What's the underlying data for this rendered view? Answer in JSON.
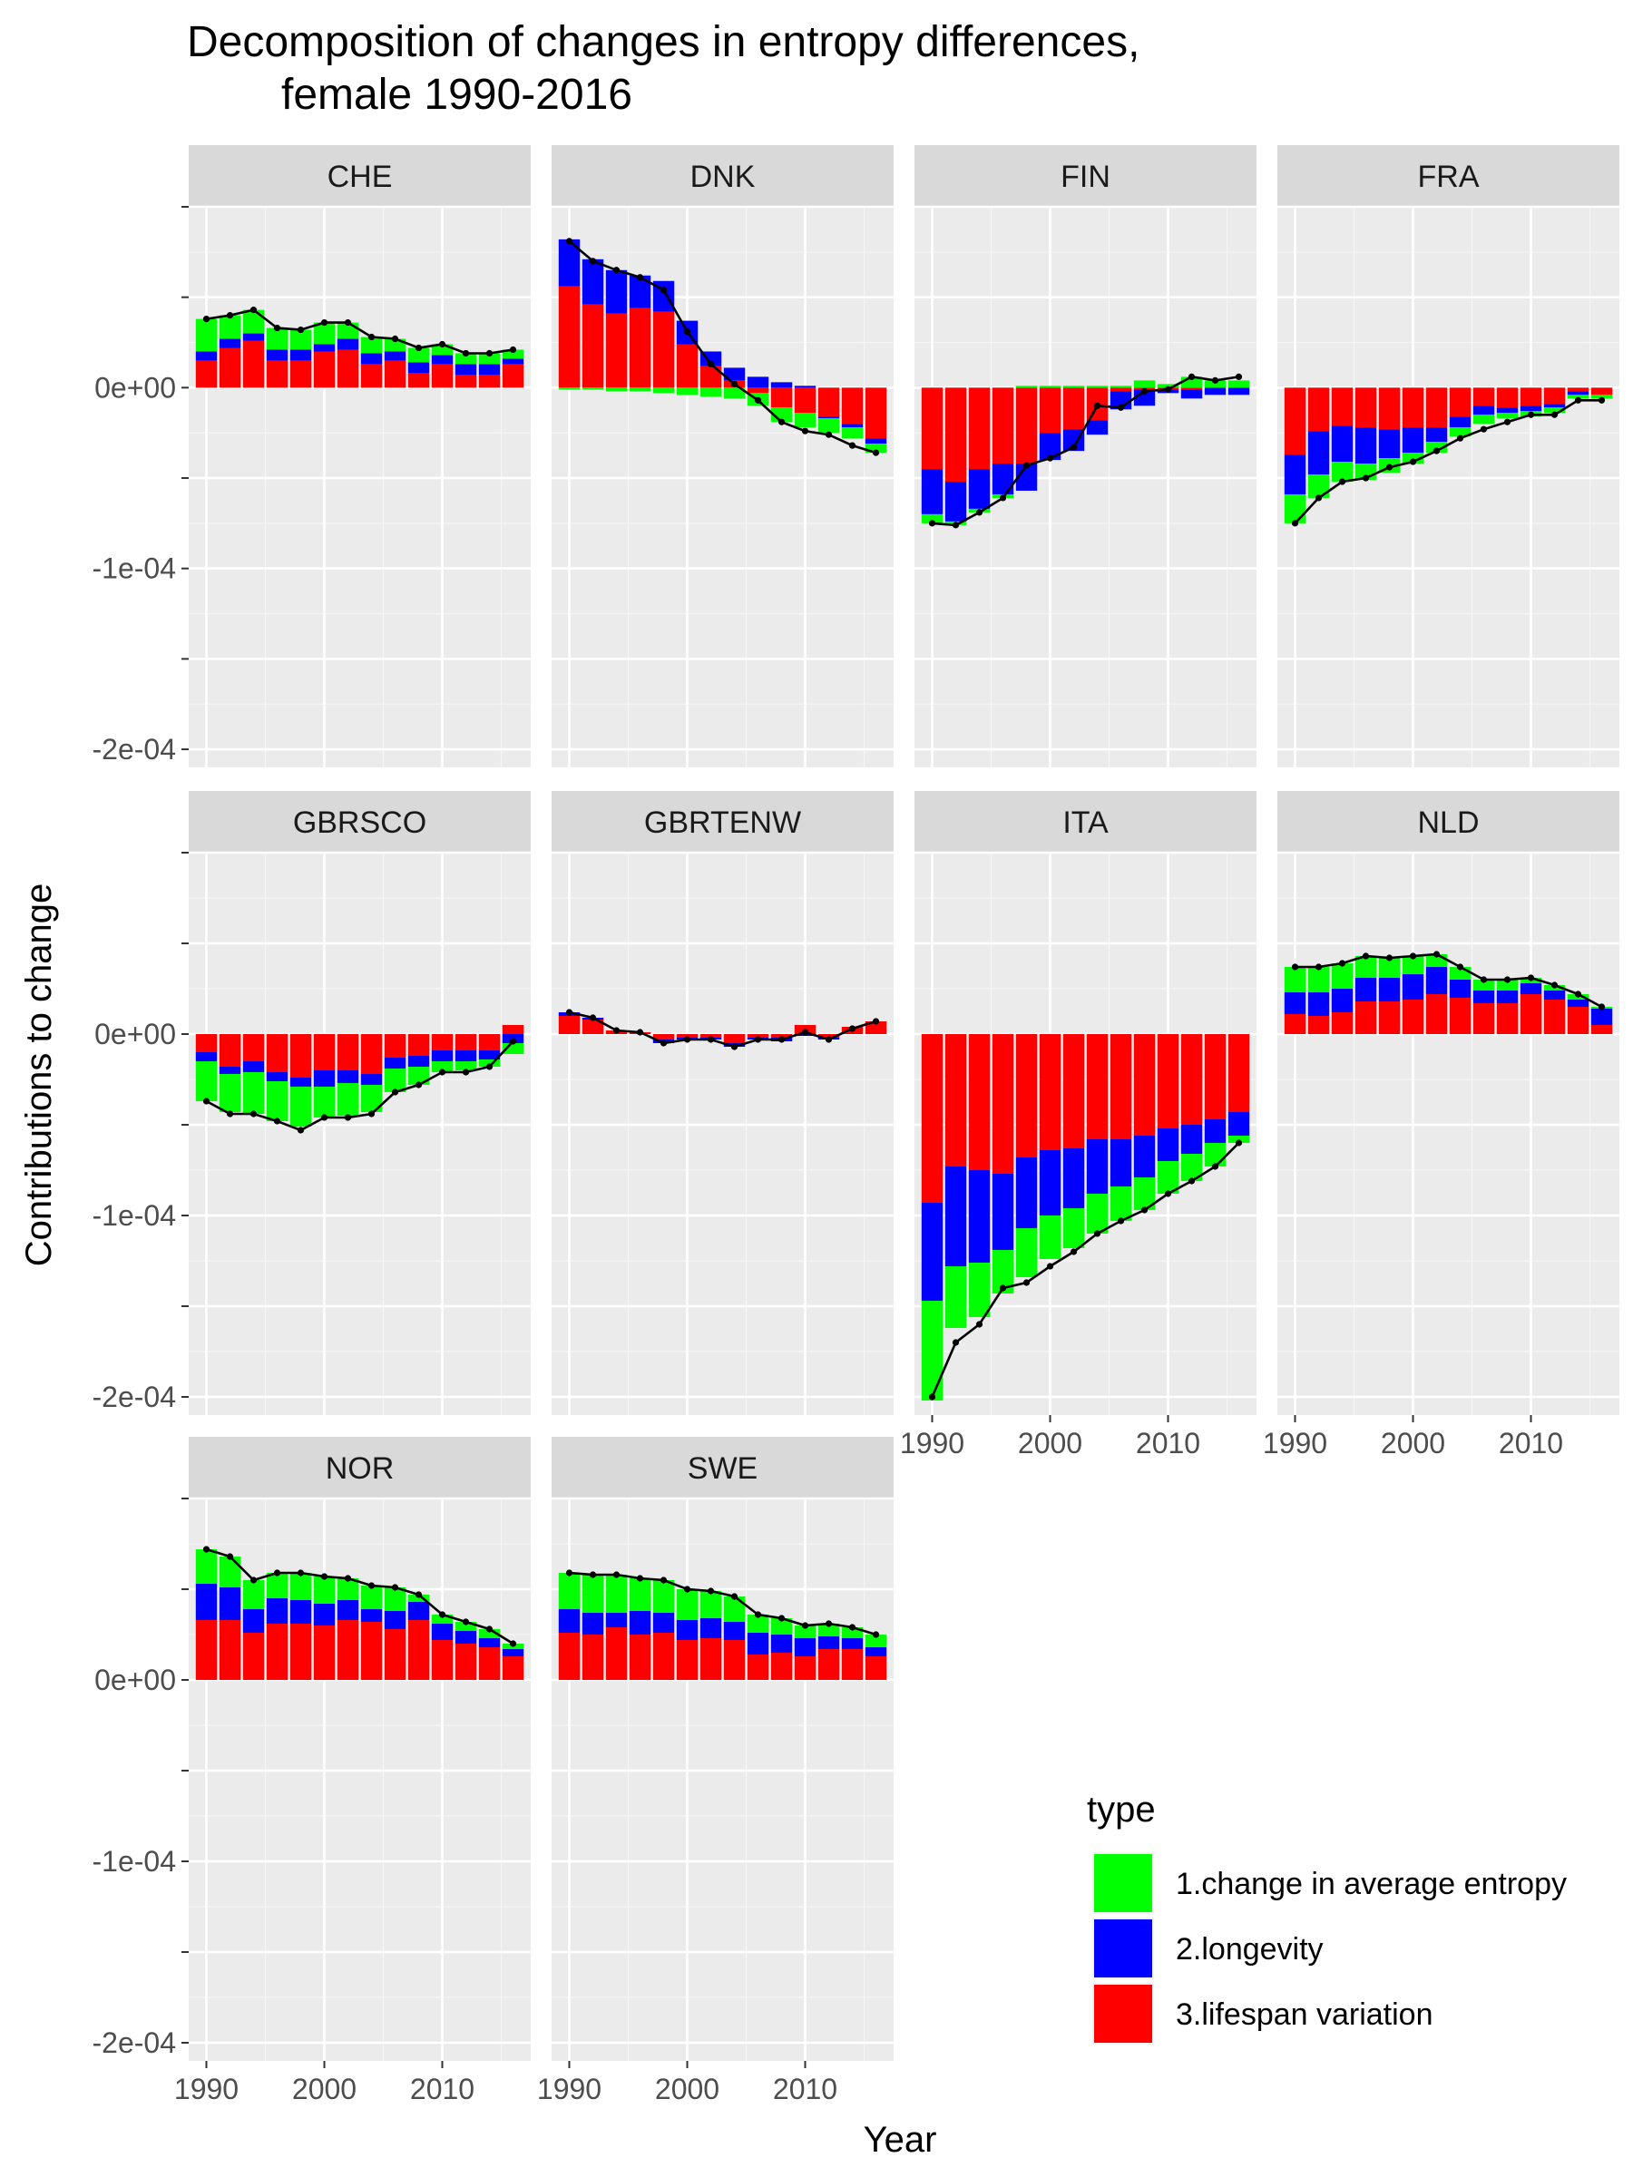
{
  "chart_data": {
    "type": "bar",
    "title_lines": [
      "Decomposition of changes in entropy differences,",
      "female 1990-2016"
    ],
    "xlabel": "Year",
    "ylabel": "Contributions to change",
    "x_ticks": [
      1990,
      2000,
      2010
    ],
    "x_tick_labels": [
      "1990",
      "2000",
      "2010"
    ],
    "xlim": [
      1988.5,
      2017.5
    ],
    "ylim": [
      -0.00021,
      0.0001
    ],
    "y_ticks": [
      0.0001,
      5e-05,
      0,
      -5e-05,
      -0.0001,
      -0.00015,
      -0.0002
    ],
    "y_tick_labels": [
      "",
      "",
      "0e+00",
      "",
      "-1e-04",
      "",
      "-2e-04"
    ],
    "grid": true,
    "legend_position": "bottom-right",
    "legend_title": "type",
    "series_types": [
      {
        "name": "1.change in average entropy",
        "color": "#00ff00"
      },
      {
        "name": "2.longevity",
        "color": "#0000ff"
      },
      {
        "name": "3.lifespan variation",
        "color": "#ff0000"
      }
    ],
    "x": [
      1990,
      1992,
      1994,
      1996,
      1998,
      2000,
      2002,
      2004,
      2006,
      2008,
      2010,
      2012,
      2014,
      2016
    ],
    "panels": [
      {
        "label": "CHE",
        "lifespan_variation": [
          1.5e-05,
          2.2e-05,
          2.6e-05,
          1.5e-05,
          1.5e-05,
          2e-05,
          2.1e-05,
          1.3e-05,
          1.5e-05,
          8e-06,
          1.3e-05,
          7e-06,
          7e-06,
          1.3e-05
        ],
        "longevity": [
          5e-06,
          5e-06,
          4e-06,
          6e-06,
          6e-06,
          4e-06,
          6e-06,
          6e-06,
          5e-06,
          6e-06,
          5e-06,
          6e-06,
          6e-06,
          3e-06
        ],
        "avg_entropy": [
          1.8e-05,
          1.3e-05,
          1.3e-05,
          1.2e-05,
          1.1e-05,
          1.2e-05,
          9e-06,
          9e-06,
          7e-06,
          8e-06,
          6e-06,
          6e-06,
          6e-06,
          5e-06
        ],
        "total": [
          3.8e-05,
          4e-05,
          4.3e-05,
          3.3e-05,
          3.2e-05,
          3.6e-05,
          3.6e-05,
          2.8e-05,
          2.7e-05,
          2.2e-05,
          2.4e-05,
          1.9e-05,
          1.9e-05,
          2.1e-05
        ]
      },
      {
        "label": "DNK",
        "lifespan_variation": [
          5.6e-05,
          4.6e-05,
          4.1e-05,
          4.4e-05,
          4.2e-05,
          2.4e-05,
          1.2e-05,
          4e-06,
          -3e-06,
          -1.1e-05,
          -1.4e-05,
          -1.6e-05,
          -2e-05,
          -2.8e-05
        ],
        "longevity": [
          2.6e-05,
          2.5e-05,
          2.4e-05,
          1.8e-05,
          1.7e-05,
          1.3e-05,
          8e-06,
          7e-06,
          6e-06,
          3e-06,
          1e-06,
          -1e-06,
          -2e-06,
          -3e-06
        ],
        "avg_entropy": [
          -1e-06,
          -1e-06,
          -2e-06,
          -2e-06,
          -3e-06,
          -4e-06,
          -5e-06,
          -6e-06,
          -7e-06,
          -8e-06,
          -8e-06,
          -8e-06,
          -6e-06,
          -5e-06
        ],
        "total": [
          8.1e-05,
          7e-05,
          6.5e-05,
          6.1e-05,
          5.4e-05,
          3.1e-05,
          1.3e-05,
          2e-06,
          -7e-06,
          -1.9e-05,
          -2.4e-05,
          -2.6e-05,
          -3.2e-05,
          -3.6e-05
        ]
      },
      {
        "label": "FIN",
        "lifespan_variation": [
          -4.5e-05,
          -5.2e-05,
          -4.5e-05,
          -4.2e-05,
          -4.2e-05,
          -2.5e-05,
          -2.3e-05,
          -1.8e-05,
          -2e-06,
          -1e-06,
          -1e-06,
          -1e-06,
          0,
          0
        ],
        "longevity": [
          -2.5e-05,
          -2.2e-05,
          -2.2e-05,
          -1.7e-05,
          -1.5e-05,
          -1.5e-05,
          -1.2e-05,
          -8e-06,
          -1e-05,
          -9e-06,
          -2e-06,
          -5e-06,
          -4e-06,
          -4e-06
        ],
        "avg_entropy": [
          -5e-06,
          -2e-06,
          -2e-06,
          -2e-06,
          1e-06,
          1e-06,
          1e-06,
          1e-06,
          1e-06,
          4e-06,
          2e-06,
          6e-06,
          4e-06,
          4e-06
        ],
        "total": [
          -7.5e-05,
          -7.6e-05,
          -6.9e-05,
          -6.1e-05,
          -4.3e-05,
          -3.9e-05,
          -3.3e-05,
          -1e-05,
          -1.1e-05,
          -2e-06,
          -1e-06,
          6e-06,
          4e-06,
          6e-06
        ]
      },
      {
        "label": "FRA",
        "lifespan_variation": [
          -3.7e-05,
          -2.4e-05,
          -2.1e-05,
          -2.2e-05,
          -2.3e-05,
          -2.2e-05,
          -2.2e-05,
          -1.6e-05,
          -1e-05,
          -1.1e-05,
          -1e-05,
          -9e-06,
          -2e-06,
          -4e-06
        ],
        "longevity": [
          -2.2e-05,
          -2.4e-05,
          -2e-05,
          -2e-05,
          -1.6e-05,
          -1.4e-05,
          -8e-06,
          -6e-06,
          -5e-06,
          -3e-06,
          -3e-06,
          -2e-06,
          -2e-06,
          0
        ],
        "avg_entropy": [
          -1.6e-05,
          -1.3e-05,
          -1.1e-05,
          -9e-06,
          -8e-06,
          -6e-06,
          -6e-06,
          -5e-06,
          -5e-06,
          -3e-06,
          -3e-06,
          -3e-06,
          -2e-06,
          -2e-06
        ],
        "total": [
          -7.5e-05,
          -6.1e-05,
          -5.2e-05,
          -5e-05,
          -4.4e-05,
          -4.1e-05,
          -3.5e-05,
          -2.8e-05,
          -2.3e-05,
          -1.9e-05,
          -1.5e-05,
          -1.5e-05,
          -7e-06,
          -7e-06
        ]
      },
      {
        "label": "GBRSCO",
        "lifespan_variation": [
          -1e-05,
          -1.8e-05,
          -1.5e-05,
          -2.1e-05,
          -2.4e-05,
          -2e-05,
          -2e-05,
          -2.2e-05,
          -1.3e-05,
          -1.2e-05,
          -9e-06,
          -9e-06,
          -9e-06,
          5e-06
        ],
        "longevity": [
          -5e-06,
          -4e-06,
          -6e-06,
          -5e-06,
          -5e-06,
          -9e-06,
          -7e-06,
          -6e-06,
          -6e-06,
          -6e-06,
          -6e-06,
          -6e-06,
          -5e-06,
          -5e-06
        ],
        "avg_entropy": [
          -2.2e-05,
          -2.1e-05,
          -2.3e-05,
          -2.2e-05,
          -2.2e-05,
          -1.7e-05,
          -1.8e-05,
          -1.5e-05,
          -1.3e-05,
          -1e-05,
          -6e-06,
          -5e-06,
          -4e-06,
          -6e-06
        ],
        "total": [
          -3.7e-05,
          -4.4e-05,
          -4.4e-05,
          -4.8e-05,
          -5.3e-05,
          -4.6e-05,
          -4.6e-05,
          -4.4e-05,
          -3.2e-05,
          -2.8e-05,
          -2.1e-05,
          -2.1e-05,
          -1.8e-05,
          -4e-06
        ]
      },
      {
        "label": "GBRTENW",
        "lifespan_variation": [
          1e-05,
          8e-06,
          2e-06,
          1e-06,
          -3e-06,
          -2e-06,
          -2e-06,
          -5e-06,
          -2e-06,
          -2e-06,
          5e-06,
          -2e-06,
          4e-06,
          7e-06
        ],
        "longevity": [
          2e-06,
          1e-06,
          0,
          0,
          -2e-06,
          -1e-06,
          -1e-06,
          -2e-06,
          -1e-06,
          -2e-06,
          -1e-06,
          -1e-06,
          0,
          0
        ],
        "avg_entropy": [
          0,
          0,
          0,
          0,
          0,
          0,
          0,
          0,
          0,
          0,
          0,
          0,
          0,
          0
        ],
        "total": [
          1.2e-05,
          9e-06,
          2e-06,
          1e-06,
          -5e-06,
          -3e-06,
          -3e-06,
          -7e-06,
          -3e-06,
          -3e-06,
          1e-06,
          -3e-06,
          3e-06,
          7e-06
        ]
      },
      {
        "label": "ITA",
        "lifespan_variation": [
          -9.3e-05,
          -7.3e-05,
          -7.5e-05,
          -7.7e-05,
          -6.8e-05,
          -6.4e-05,
          -6.3e-05,
          -5.8e-05,
          -5.8e-05,
          -5.6e-05,
          -5.2e-05,
          -5e-05,
          -4.7e-05,
          -4.3e-05
        ],
        "longevity": [
          -5.4e-05,
          -5.5e-05,
          -5.1e-05,
          -4.2e-05,
          -3.9e-05,
          -3.6e-05,
          -3.3e-05,
          -3e-05,
          -2.6e-05,
          -2.3e-05,
          -1.8e-05,
          -1.6e-05,
          -1.3e-05,
          -1.3e-05
        ],
        "avg_entropy": [
          -5.5e-05,
          -3.4e-05,
          -3e-05,
          -2.4e-05,
          -2.7e-05,
          -2.4e-05,
          -2.2e-05,
          -2.2e-05,
          -1.9e-05,
          -1.8e-05,
          -1.8e-05,
          -1.5e-05,
          -1.3e-05,
          -4e-06
        ],
        "total": [
          -0.0002,
          -0.00017,
          -0.00016,
          -0.00014,
          -0.000137,
          -0.000128,
          -0.00012,
          -0.00011,
          -0.000103,
          -9.7e-05,
          -8.8e-05,
          -8.1e-05,
          -7.3e-05,
          -6e-05
        ]
      },
      {
        "label": "NLD",
        "lifespan_variation": [
          1.1e-05,
          1e-05,
          1.2e-05,
          1.8e-05,
          1.8e-05,
          1.9e-05,
          2.2e-05,
          2e-05,
          1.7e-05,
          1.7e-05,
          2.2e-05,
          1.9e-05,
          1.5e-05,
          5e-06
        ],
        "longevity": [
          1.2e-05,
          1.3e-05,
          1.3e-05,
          1.3e-05,
          1.3e-05,
          1.4e-05,
          1.5e-05,
          1e-05,
          7e-06,
          7e-06,
          6e-06,
          5e-06,
          4e-06,
          9e-06
        ],
        "avg_entropy": [
          1.4e-05,
          1.4e-05,
          1.4e-05,
          1.2e-05,
          1.1e-05,
          1e-05,
          7e-06,
          7e-06,
          6e-06,
          6e-06,
          3e-06,
          3e-06,
          3e-06,
          1e-06
        ],
        "total": [
          3.7e-05,
          3.7e-05,
          3.9e-05,
          4.3e-05,
          4.2e-05,
          4.3e-05,
          4.4e-05,
          3.7e-05,
          3e-05,
          3e-05,
          3.1e-05,
          2.7e-05,
          2.2e-05,
          1.5e-05
        ]
      },
      {
        "label": "NOR",
        "lifespan_variation": [
          3.3e-05,
          3.3e-05,
          2.6e-05,
          3.1e-05,
          3.1e-05,
          3e-05,
          3.3e-05,
          3.2e-05,
          2.8e-05,
          3.3e-05,
          2.2e-05,
          2e-05,
          1.8e-05,
          1.3e-05
        ],
        "longevity": [
          2e-05,
          1.8e-05,
          1.3e-05,
          1.4e-05,
          1.3e-05,
          1.2e-05,
          1.1e-05,
          7e-06,
          1e-05,
          1e-05,
          9e-06,
          7e-06,
          5e-06,
          4e-06
        ],
        "avg_entropy": [
          1.9e-05,
          1.7e-05,
          1.6e-05,
          1.4e-05,
          1.5e-05,
          1.5e-05,
          1.2e-05,
          1.3e-05,
          1.3e-05,
          4e-06,
          5e-06,
          5e-06,
          5e-06,
          3e-06
        ],
        "total": [
          7.2e-05,
          6.8e-05,
          5.5e-05,
          5.9e-05,
          5.9e-05,
          5.7e-05,
          5.6e-05,
          5.2e-05,
          5.1e-05,
          4.7e-05,
          3.6e-05,
          3.2e-05,
          2.8e-05,
          2e-05
        ]
      },
      {
        "label": "SWE",
        "lifespan_variation": [
          2.6e-05,
          2.5e-05,
          2.9e-05,
          2.5e-05,
          2.6e-05,
          2.2e-05,
          2.3e-05,
          2.2e-05,
          1.4e-05,
          1.5e-05,
          1.3e-05,
          1.7e-05,
          1.7e-05,
          1.3e-05
        ],
        "longevity": [
          1.3e-05,
          1.2e-05,
          8e-06,
          1.3e-05,
          1.1e-05,
          1.1e-05,
          1.1e-05,
          1e-05,
          1.2e-05,
          1e-05,
          1e-05,
          7e-06,
          6e-06,
          5e-06
        ],
        "avg_entropy": [
          2e-05,
          2.1e-05,
          2.1e-05,
          1.8e-05,
          1.8e-05,
          1.7e-05,
          1.5e-05,
          1.4e-05,
          1e-05,
          9e-06,
          7e-06,
          7e-06,
          6e-06,
          7e-06
        ],
        "total": [
          5.9e-05,
          5.8e-05,
          5.8e-05,
          5.6e-05,
          5.5e-05,
          5e-05,
          4.9e-05,
          4.6e-05,
          3.6e-05,
          3.4e-05,
          3e-05,
          3.1e-05,
          2.9e-05,
          2.5e-05
        ]
      }
    ]
  }
}
